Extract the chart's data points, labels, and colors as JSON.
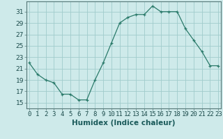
{
  "x": [
    0,
    1,
    2,
    3,
    4,
    5,
    6,
    7,
    8,
    9,
    10,
    11,
    12,
    13,
    14,
    15,
    16,
    17,
    18,
    19,
    20,
    21,
    22,
    23
  ],
  "y": [
    22,
    20,
    19,
    18.5,
    16.5,
    16.5,
    15.5,
    15.5,
    19,
    22,
    25.5,
    29,
    30,
    30.5,
    30.5,
    32,
    31,
    31,
    31,
    28,
    26,
    24,
    21.5,
    21.5
  ],
  "line_color": "#2a7a6a",
  "marker_color": "#2a7a6a",
  "bg_color": "#ceeaea",
  "grid_color": "#a0cccc",
  "xlabel": "Humidex (Indice chaleur)",
  "yticks": [
    15,
    17,
    19,
    21,
    23,
    25,
    27,
    29,
    31
  ],
  "xtick_labels": [
    "0",
    "1",
    "2",
    "3",
    "4",
    "5",
    "6",
    "7",
    "8",
    "9",
    "10",
    "11",
    "12",
    "13",
    "14",
    "15",
    "16",
    "17",
    "18",
    "19",
    "20",
    "21",
    "22",
    "23"
  ],
  "xtick_positions": [
    0,
    1,
    2,
    3,
    4,
    5,
    6,
    7,
    8,
    9,
    10,
    11,
    12,
    13,
    14,
    15,
    16,
    17,
    18,
    19,
    20,
    21,
    22,
    23
  ],
  "ylim": [
    14.0,
    32.8
  ],
  "xlim": [
    -0.3,
    23.3
  ],
  "xlabel_fontsize": 7.5,
  "tick_fontsize": 6.5
}
